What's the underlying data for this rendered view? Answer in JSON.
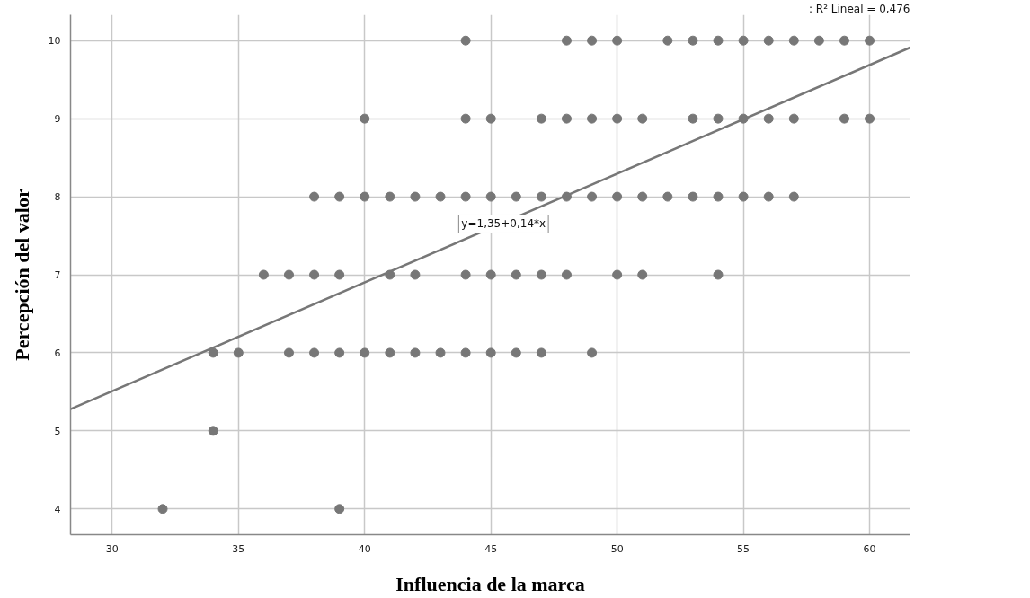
{
  "chart_data": {
    "type": "scatter",
    "xlabel": "Influencia de la marca",
    "ylabel": "Percepción del valor",
    "xlim": [
      28.35,
      61.6
    ],
    "ylim": [
      3.67,
      10.33
    ],
    "xticks": [
      30,
      35,
      40,
      45,
      50,
      55,
      60
    ],
    "yticks": [
      4,
      5,
      6,
      7,
      8,
      9,
      10
    ],
    "grid": true,
    "series": [
      {
        "marker": "circle",
        "color": "#777777",
        "x": [
          44,
          48,
          49,
          50,
          52,
          53,
          54,
          55,
          56,
          57,
          58,
          59,
          60,
          40,
          44,
          45,
          47,
          48,
          49,
          50,
          51,
          53,
          54,
          55,
          56,
          57,
          59,
          60,
          38,
          39,
          40,
          41,
          42,
          43,
          44,
          45,
          46,
          47,
          48,
          49,
          50,
          51,
          52,
          53,
          54,
          55,
          56,
          57,
          36,
          37,
          38,
          39,
          41,
          42,
          44,
          45,
          46,
          47,
          48,
          50,
          51,
          54,
          34,
          35,
          37,
          38,
          39,
          40,
          41,
          42,
          43,
          44,
          45,
          46,
          47,
          49,
          34,
          32,
          39
        ],
        "values": [
          10,
          10,
          10,
          10,
          10,
          10,
          10,
          10,
          10,
          10,
          10,
          10,
          10,
          9,
          9,
          9,
          9,
          9,
          9,
          9,
          9,
          9,
          9,
          9,
          9,
          9,
          9,
          9,
          8,
          8,
          8,
          8,
          8,
          8,
          8,
          8,
          8,
          8,
          8,
          8,
          8,
          8,
          8,
          8,
          8,
          8,
          8,
          8,
          7,
          7,
          7,
          7,
          7,
          7,
          7,
          7,
          7,
          7,
          7,
          7,
          7,
          7,
          6,
          6,
          6,
          6,
          6,
          6,
          6,
          6,
          6,
          6,
          6,
          6,
          6,
          6,
          5,
          4,
          4
        ]
      },
      {
        "type": "line",
        "color": "#777777",
        "x": [
          28.35,
          61.6
        ],
        "values": [
          5.28,
          9.91
        ]
      }
    ],
    "annotations": [
      {
        "text": "y=1,35+0,14*x",
        "x": 45.5,
        "y": 7.65
      },
      ": R² Lineal = 0,476"
    ]
  }
}
